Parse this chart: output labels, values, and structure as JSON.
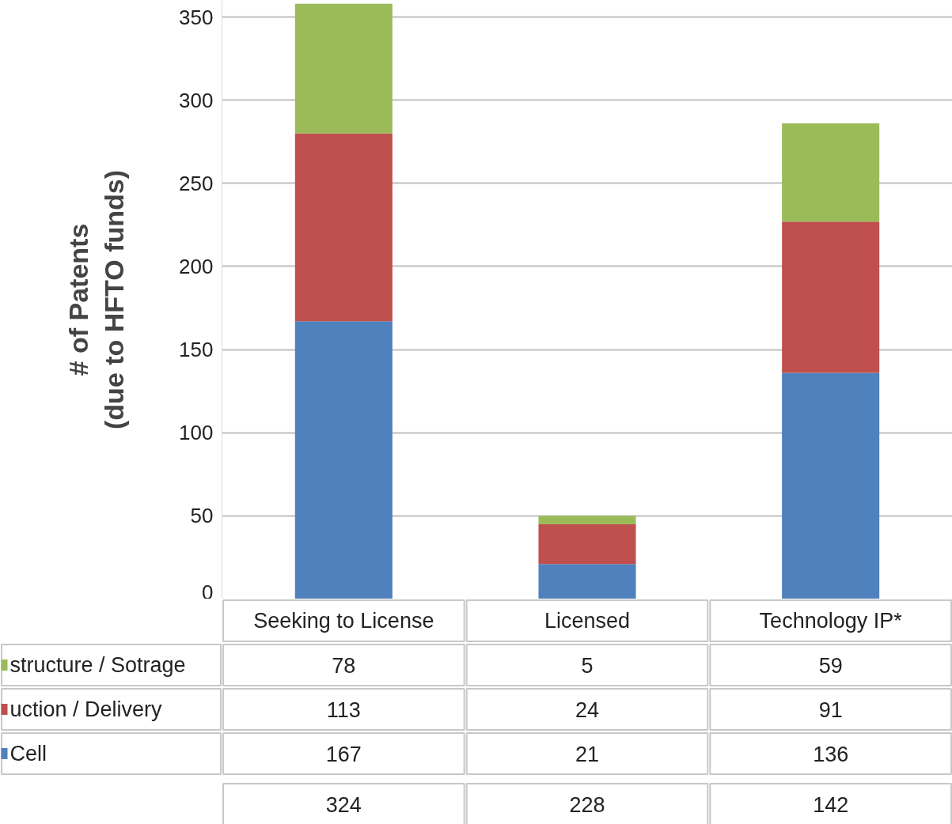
{
  "chart_data": {
    "type": "bar",
    "stacked": true,
    "ylabel": "# of Patents\n(due to HFTO funds)",
    "categories": [
      "Seeking to License",
      "Licensed",
      "Technology IP*"
    ],
    "series": [
      {
        "name": "Cell",
        "color": "#4f81bd",
        "values": [
          167,
          21,
          136
        ]
      },
      {
        "name": "uction / Delivery",
        "color": "#c0504d",
        "values": [
          113,
          24,
          91
        ]
      },
      {
        "name": "structure / Sotrage",
        "color": "#9bbb59",
        "values": [
          78,
          5,
          59
        ]
      }
    ],
    "ylim": [
      0,
      360
    ],
    "yticks": [
      0,
      50,
      100,
      150,
      200,
      250,
      300,
      350
    ],
    "grid": "y",
    "data_labels": true,
    "legend": "bottom left",
    "annotations": [
      "324",
      "228",
      "142"
    ]
  }
}
